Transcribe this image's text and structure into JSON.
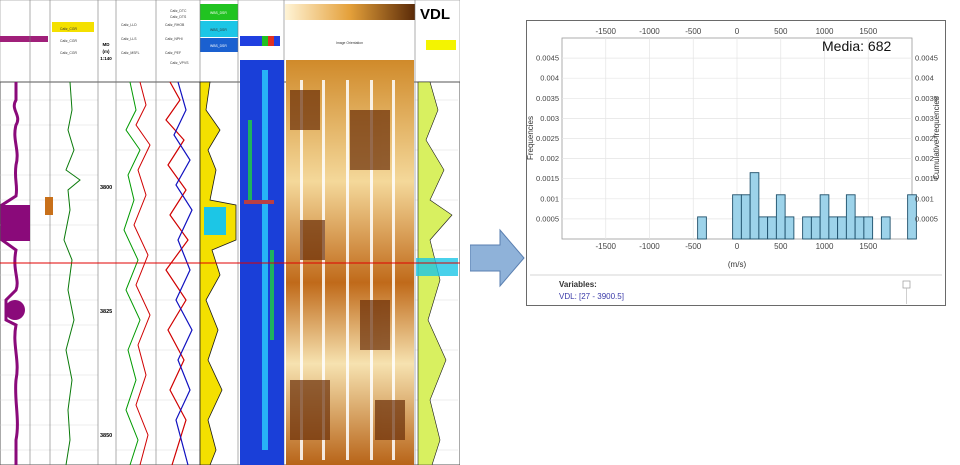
{
  "log_panel": {
    "vdl_title": "VDL",
    "depth_header": [
      "MD",
      "(m)",
      "1:140"
    ],
    "depth_labels": [
      "3800",
      "3825",
      "3850"
    ],
    "col_headers": {
      "c2": [
        "Caliz_CGR",
        "Caliz_CGR",
        "Caliz_CGR"
      ],
      "c3": [
        "Caliz_LLD",
        "Caliz_LLS",
        "Caliz_MSFL"
      ],
      "c4": [
        "Caliz_RHOB",
        "Caliz_NPHI",
        "Caliz_PEF"
      ],
      "c5": [
        "Caliz_DTC",
        "Caliz_DTS",
        "Caliz_VPVS"
      ],
      "c6": [
        "WBS_DSR",
        "WBS_DSR",
        "WBS_DSR"
      ],
      "c7": [
        "Image Orientation"
      ]
    },
    "colors": {
      "purple": "#8a0a7a",
      "green": "#009a00",
      "red": "#d00000",
      "blue": "#1010c0",
      "yellow": "#f4e000",
      "copper": "#b05a10"
    }
  },
  "histogram": {
    "annotation": "Media: 682",
    "variables_label": "Variables:",
    "variables_value": "VDL: [27 - 3900.5]",
    "colors": {
      "bar_fill": "#9dd3ea",
      "bar_stroke": "#1d4f6a",
      "arrow": "#8fb2d9"
    }
  },
  "chart_data": {
    "type": "bar",
    "title": "",
    "xlabel": "(m/s)",
    "ylabel": "Frequencies",
    "y2label": "Cumulative frequencies",
    "xlim": [
      -2000,
      2000
    ],
    "ylim": [
      0,
      0.005
    ],
    "x_ticks": [
      "-1500",
      "-1000",
      "-500",
      "0",
      "500",
      "1000",
      "1500"
    ],
    "y_ticks": [
      "0.0005",
      "0.001",
      "0.0015",
      "0.002",
      "0.0025",
      "0.003",
      "0.0035",
      "0.004",
      "0.0045"
    ],
    "y2_ticks": [
      "0.0005",
      "0.001",
      "0.0015",
      "0.002",
      "0.0025",
      "0.003",
      "0.0035",
      "0.004",
      "0.0045"
    ],
    "bin_width": 100,
    "bins": [
      {
        "x": -400,
        "y": 0.00055
      },
      {
        "x": 0,
        "y": 0.0011
      },
      {
        "x": 100,
        "y": 0.0011
      },
      {
        "x": 200,
        "y": 0.00165
      },
      {
        "x": 300,
        "y": 0.00055
      },
      {
        "x": 400,
        "y": 0.00055
      },
      {
        "x": 500,
        "y": 0.0011
      },
      {
        "x": 600,
        "y": 0.00055
      },
      {
        "x": 800,
        "y": 0.00055
      },
      {
        "x": 900,
        "y": 0.00055
      },
      {
        "x": 1000,
        "y": 0.0011
      },
      {
        "x": 1100,
        "y": 0.00055
      },
      {
        "x": 1200,
        "y": 0.00055
      },
      {
        "x": 1300,
        "y": 0.0011
      },
      {
        "x": 1400,
        "y": 0.00055
      },
      {
        "x": 1500,
        "y": 0.00055
      },
      {
        "x": 1700,
        "y": 0.00055
      },
      {
        "x": 2000,
        "y": 0.0011
      }
    ],
    "grid": true
  }
}
